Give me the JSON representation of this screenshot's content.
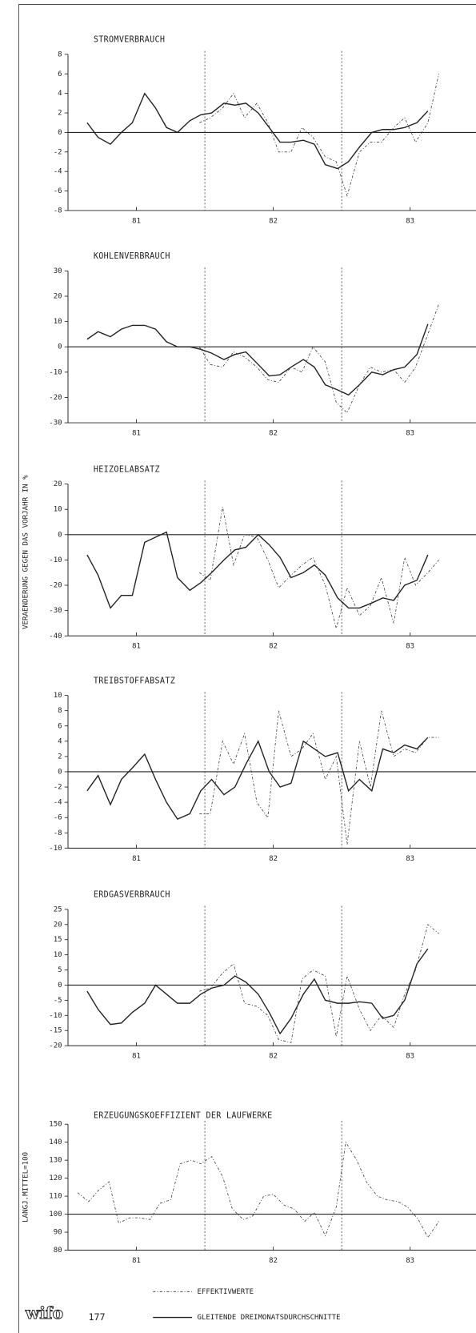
{
  "y_axis_label": "VERAENDERUNG GEGEN DAS VORJAHR IN %",
  "legend": [
    {
      "style": "dotted",
      "label": "EFFEKTIVWERTE"
    },
    {
      "style": "solid",
      "label": "GLEITENDE DREIMONATSDURCHSCHNITTE"
    }
  ],
  "logo": "wifo",
  "page_number": "177",
  "chart_data": [
    {
      "type": "line",
      "title": "STROMVERBRAUCH",
      "xlim": [
        1981,
        1984
      ],
      "xticks": [
        {
          "value": 1981.5,
          "label": "81"
        },
        {
          "value": 1982.5,
          "label": "82"
        },
        {
          "value": 1983.5,
          "label": "83"
        }
      ],
      "vlines": [
        1982,
        1983
      ],
      "hline": 0,
      "ylim": [
        -8,
        8
      ],
      "yticks": [
        -8,
        -6,
        -4,
        -2,
        0,
        2,
        4,
        6,
        8
      ],
      "series": [
        {
          "style": "solid",
          "x": [
            1981.14,
            1981.22,
            1981.31,
            1981.39,
            1981.47,
            1981.56,
            1981.64,
            1981.72,
            1981.8,
            1981.89,
            1981.97,
            1982.05,
            1982.14,
            1982.22,
            1982.3,
            1982.39,
            1982.47,
            1982.55,
            1982.63,
            1982.72,
            1982.8,
            1982.88,
            1982.97,
            1983.05,
            1983.13,
            1983.22,
            1983.3,
            1983.38,
            1983.46,
            1983.55,
            1983.63
          ],
          "values": [
            1,
            -0.5,
            -1.2,
            0,
            1,
            4,
            2.5,
            0.5,
            0,
            1.2,
            1.8,
            2,
            3,
            2.8,
            3,
            2,
            0.5,
            -1,
            -1,
            -0.8,
            -1.2,
            -3.3,
            -3.7,
            -3,
            -1.5,
            0,
            0.3,
            0.3,
            0.5,
            1,
            2.2
          ]
        },
        {
          "style": "dotted",
          "x": [
            1981.96,
            1982.04,
            1982.13,
            1982.21,
            1982.29,
            1982.38,
            1982.46,
            1982.54,
            1982.63,
            1982.71,
            1982.79,
            1982.88,
            1982.96,
            1983.04,
            1983.13,
            1983.21,
            1983.29,
            1983.38,
            1983.46,
            1983.54,
            1983.63,
            1983.71
          ],
          "values": [
            1,
            1.5,
            2.5,
            4,
            1.5,
            3,
            1,
            -2,
            -2,
            0.5,
            -0.5,
            -2.5,
            -3,
            -6.5,
            -2,
            -1,
            -1,
            0.5,
            1.5,
            -1,
            1,
            6
          ]
        }
      ]
    },
    {
      "type": "line",
      "title": "KOHLENVERBRAUCH",
      "xlim": [
        1981,
        1984
      ],
      "xticks": [
        {
          "value": 1981.5,
          "label": "81"
        },
        {
          "value": 1982.5,
          "label": "82"
        },
        {
          "value": 1983.5,
          "label": "83"
        }
      ],
      "vlines": [
        1982,
        1983
      ],
      "hline": 0,
      "ylim": [
        -30,
        30
      ],
      "yticks": [
        -30,
        -20,
        -10,
        0,
        10,
        20,
        30
      ],
      "series": [
        {
          "style": "solid",
          "x": [
            1981.14,
            1981.22,
            1981.31,
            1981.39,
            1981.47,
            1981.56,
            1981.64,
            1981.72,
            1981.8,
            1981.89,
            1981.97,
            1982.05,
            1982.14,
            1982.22,
            1982.3,
            1982.39,
            1982.47,
            1982.55,
            1982.63,
            1982.72,
            1982.8,
            1982.88,
            1982.97,
            1983.05,
            1983.13,
            1983.22,
            1983.3,
            1983.38,
            1983.46,
            1983.55,
            1983.63
          ],
          "values": [
            3,
            6,
            4,
            7,
            8.5,
            8.5,
            7,
            2,
            0,
            0,
            -1,
            -2.5,
            -5,
            -3,
            -2,
            -7,
            -11.5,
            -11,
            -8,
            -5,
            -8,
            -15,
            -17,
            -19,
            -15,
            -10,
            -11,
            -9,
            -8,
            -3,
            9
          ]
        },
        {
          "style": "dotted",
          "x": [
            1981.96,
            1982.04,
            1982.13,
            1982.21,
            1982.29,
            1982.38,
            1982.46,
            1982.54,
            1982.63,
            1982.71,
            1982.79,
            1982.88,
            1982.96,
            1983.04,
            1983.13,
            1983.21,
            1983.29,
            1983.38,
            1983.46,
            1983.54,
            1983.63,
            1983.71
          ],
          "values": [
            0,
            -7,
            -8,
            -2,
            -4,
            -8,
            -13,
            -14,
            -8,
            -10,
            0,
            -6,
            -22,
            -26,
            -15,
            -8,
            -10,
            -9,
            -14,
            -8,
            5,
            17
          ]
        }
      ]
    },
    {
      "type": "line",
      "title": "HEIZOELABSATZ",
      "xlim": [
        1981,
        1984
      ],
      "xticks": [
        {
          "value": 1981.5,
          "label": "81"
        },
        {
          "value": 1982.5,
          "label": "82"
        },
        {
          "value": 1983.5,
          "label": "83"
        }
      ],
      "vlines": [
        1982,
        1983
      ],
      "hline": 0,
      "ylim": [
        -40,
        20
      ],
      "yticks": [
        -40,
        -30,
        -20,
        -10,
        0,
        10,
        20
      ],
      "series": [
        {
          "style": "solid",
          "x": [
            1981.14,
            1981.22,
            1981.31,
            1981.39,
            1981.47,
            1981.56,
            1981.64,
            1981.72,
            1981.8,
            1981.89,
            1981.97,
            1982.05,
            1982.14,
            1982.22,
            1982.3,
            1982.39,
            1982.47,
            1982.55,
            1982.63,
            1982.72,
            1982.8,
            1982.88,
            1982.97,
            1983.05,
            1983.13,
            1983.22,
            1983.3,
            1983.38,
            1983.46,
            1983.55,
            1983.63
          ],
          "values": [
            -8,
            -16,
            -29,
            -24,
            -24,
            -3,
            -1,
            1,
            -17,
            -22,
            -19,
            -15,
            -10,
            -6,
            -5,
            0,
            -4,
            -9,
            -17,
            -15,
            -12,
            -16,
            -25,
            -29,
            -29,
            -27,
            -25,
            -26,
            -20,
            -18,
            -8
          ]
        },
        {
          "style": "dotted",
          "x": [
            1981.96,
            1982.04,
            1982.13,
            1982.21,
            1982.29,
            1982.38,
            1982.46,
            1982.54,
            1982.63,
            1982.71,
            1982.79,
            1982.88,
            1982.96,
            1983.04,
            1983.13,
            1983.21,
            1983.29,
            1983.38,
            1983.46,
            1983.54,
            1983.63,
            1983.71
          ],
          "values": [
            -15,
            -18,
            11,
            -12,
            0,
            -1,
            -10,
            -21,
            -16,
            -12,
            -9,
            -20,
            -37,
            -21,
            -32,
            -28,
            -17,
            -35,
            -9,
            -20,
            -15,
            -10
          ]
        }
      ]
    },
    {
      "type": "line",
      "title": "TREIBSTOFFABSATZ",
      "xlim": [
        1981,
        1984
      ],
      "xticks": [
        {
          "value": 1981.5,
          "label": "81"
        },
        {
          "value": 1982.5,
          "label": "82"
        },
        {
          "value": 1983.5,
          "label": "83"
        }
      ],
      "vlines": [
        1982,
        1983
      ],
      "hline": 0,
      "ylim": [
        -10,
        10
      ],
      "yticks": [
        -10,
        -8,
        -6,
        -4,
        -2,
        0,
        2,
        4,
        6,
        8,
        10
      ],
      "series": [
        {
          "style": "solid",
          "x": [
            1981.14,
            1981.22,
            1981.31,
            1981.39,
            1981.47,
            1981.56,
            1981.64,
            1981.72,
            1981.8,
            1981.89,
            1981.97,
            1982.05,
            1982.14,
            1982.22,
            1982.3,
            1982.39,
            1982.47,
            1982.55,
            1982.63,
            1982.72,
            1982.8,
            1982.88,
            1982.97,
            1983.05,
            1983.13,
            1983.22,
            1983.3,
            1983.38,
            1983.46,
            1983.55,
            1983.63
          ],
          "values": [
            -2.5,
            -0.5,
            -4.3,
            -1,
            0.5,
            2.3,
            -1,
            -4,
            -6.2,
            -5.5,
            -2.5,
            -1,
            -3,
            -2,
            1,
            4,
            0,
            -2,
            -1.5,
            4,
            3,
            2,
            2.5,
            -2.5,
            -1,
            -2.5,
            3,
            2.5,
            3.5,
            3,
            4.5
          ]
        },
        {
          "style": "dotted",
          "x": [
            1981.96,
            1982.04,
            1982.13,
            1982.21,
            1982.29,
            1982.38,
            1982.46,
            1982.54,
            1982.63,
            1982.71,
            1982.79,
            1982.88,
            1982.96,
            1983.04,
            1983.13,
            1983.21,
            1983.29,
            1983.38,
            1983.46,
            1983.54,
            1983.63,
            1983.71
          ],
          "values": [
            -5.5,
            -5.5,
            4,
            1,
            5,
            -4,
            -6,
            8,
            2,
            3,
            5,
            -1,
            2,
            -9.5,
            4,
            -2,
            8,
            2,
            3,
            2.5,
            4.5,
            4.5
          ]
        }
      ]
    },
    {
      "type": "line",
      "title": "ERDGASVERBRAUCH",
      "xlim": [
        1981,
        1984
      ],
      "xticks": [
        {
          "value": 1981.5,
          "label": "81"
        },
        {
          "value": 1982.5,
          "label": "82"
        },
        {
          "value": 1983.5,
          "label": "83"
        }
      ],
      "vlines": [
        1982,
        1983
      ],
      "hline": 0,
      "ylim": [
        -20,
        25
      ],
      "yticks": [
        -20,
        -15,
        -10,
        -5,
        0,
        5,
        10,
        15,
        20,
        25
      ],
      "series": [
        {
          "style": "solid",
          "x": [
            1981.14,
            1981.22,
            1981.31,
            1981.39,
            1981.47,
            1981.56,
            1981.64,
            1981.72,
            1981.8,
            1981.89,
            1981.97,
            1982.05,
            1982.14,
            1982.22,
            1982.3,
            1982.39,
            1982.47,
            1982.55,
            1982.63,
            1982.72,
            1982.8,
            1982.88,
            1982.97,
            1983.05,
            1983.13,
            1983.22,
            1983.3,
            1983.38,
            1983.46,
            1983.55,
            1983.63
          ],
          "values": [
            -2,
            -8,
            -13,
            -12.5,
            -9,
            -6,
            0,
            -3,
            -6,
            -6,
            -3,
            -1,
            0,
            3,
            1,
            -3,
            -9,
            -16,
            -11,
            -3,
            2,
            -5,
            -6,
            -6,
            -5.5,
            -6,
            -11,
            -10,
            -5,
            7,
            12
          ]
        },
        {
          "style": "dotted",
          "x": [
            1981.96,
            1982.04,
            1982.13,
            1982.21,
            1982.29,
            1982.38,
            1982.46,
            1982.54,
            1982.63,
            1982.71,
            1982.79,
            1982.88,
            1982.96,
            1983.04,
            1983.13,
            1983.21,
            1983.29,
            1983.38,
            1983.46,
            1983.54,
            1983.63,
            1983.71
          ],
          "values": [
            -2,
            -1,
            4,
            7,
            -6,
            -7,
            -10,
            -18,
            -19,
            2,
            5,
            3,
            -17,
            3,
            -8,
            -15,
            -10,
            -14,
            -3,
            5,
            20,
            17
          ]
        }
      ]
    },
    {
      "type": "line",
      "title": "ERZEUGUNGSKOEFFIZIENT DER LAUFWERKE",
      "ylabel": "LANGJ.MITTEL=100",
      "xlim": [
        1981,
        1984
      ],
      "xticks": [
        {
          "value": 1981.5,
          "label": "81"
        },
        {
          "value": 1982.5,
          "label": "82"
        },
        {
          "value": 1983.5,
          "label": "83"
        }
      ],
      "vlines": [
        1982,
        1983
      ],
      "hline": 100,
      "ylim": [
        80,
        150
      ],
      "yticks": [
        80,
        90,
        100,
        110,
        120,
        130,
        140,
        150
      ],
      "series": [
        {
          "style": "dotted",
          "x": [
            1981.07,
            1981.15,
            1981.22,
            1981.3,
            1981.37,
            1981.45,
            1981.52,
            1981.6,
            1981.67,
            1981.75,
            1981.82,
            1981.9,
            1981.97,
            1982.05,
            1982.13,
            1982.2,
            1982.28,
            1982.35,
            1982.43,
            1982.5,
            1982.58,
            1982.65,
            1982.73,
            1982.8,
            1982.88,
            1982.96,
            1983.03,
            1983.11,
            1983.18,
            1983.26,
            1983.33,
            1983.41,
            1983.48,
            1983.56,
            1983.63,
            1983.71
          ],
          "values": [
            112,
            107,
            113,
            118,
            95,
            98,
            98,
            97,
            106,
            108,
            128,
            130,
            128,
            132,
            121,
            103,
            97,
            99,
            110,
            111,
            105,
            103,
            96,
            101,
            88,
            104,
            140,
            130,
            118,
            110,
            108,
            107,
            104,
            97,
            87,
            96
          ]
        }
      ]
    }
  ]
}
